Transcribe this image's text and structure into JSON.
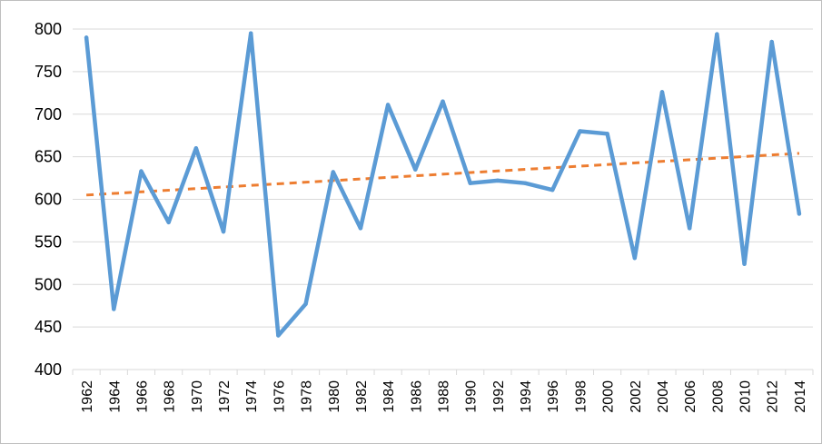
{
  "chart_data": {
    "type": "line",
    "title": "",
    "xlabel": "",
    "ylabel": "",
    "ylim": [
      400,
      800
    ],
    "yticks": [
      400,
      450,
      500,
      550,
      600,
      650,
      700,
      750,
      800
    ],
    "grid": true,
    "legend": "none",
    "x": [
      "1962",
      "1964",
      "1966",
      "1968",
      "1970",
      "1972",
      "1974",
      "1976",
      "1978",
      "1980",
      "1982",
      "1984",
      "1986",
      "1988",
      "1990",
      "1992",
      "1994",
      "1996",
      "1998",
      "2000",
      "2002",
      "2004",
      "2006",
      "2008",
      "2010",
      "2012",
      "2014"
    ],
    "series": [
      {
        "values": [
          790,
          471,
          633,
          573,
          660,
          562,
          795,
          440,
          477,
          632,
          566,
          711,
          635,
          715,
          619,
          622,
          619,
          611,
          680,
          677,
          531,
          726,
          566,
          794,
          524,
          785,
          583
        ],
        "color": "#5b9bd5",
        "style": "solid"
      },
      {
        "values_start": 605,
        "values_end": 654,
        "kind": "linear-trendline",
        "color": "#ed7d31",
        "style": "dashed"
      }
    ]
  }
}
